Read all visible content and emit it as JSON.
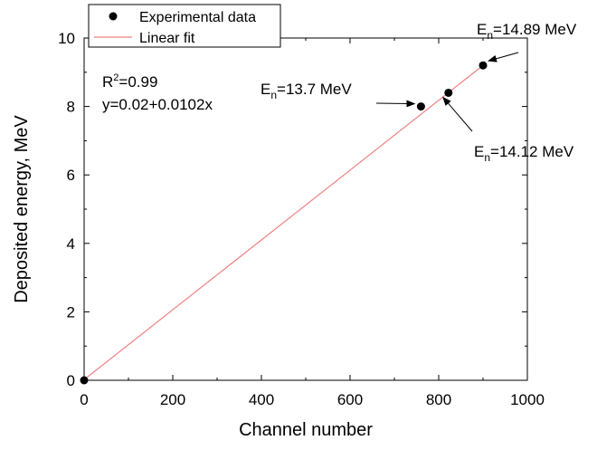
{
  "chart_data": {
    "type": "scatter",
    "title": "",
    "xlabel": "Channel number",
    "ylabel": "Deposited energy, MeV",
    "xlim": [
      0,
      1000
    ],
    "ylim": [
      0,
      10
    ],
    "x_ticks": [
      0,
      200,
      400,
      600,
      800,
      1000
    ],
    "y_ticks": [
      0,
      2,
      4,
      6,
      8,
      10
    ],
    "grid": false,
    "legend_position": "top-left",
    "series": [
      {
        "name": "Experimental data",
        "type": "scatter",
        "color": "#000000",
        "x": [
          0,
          760,
          822,
          900
        ],
        "y": [
          0.0,
          8.0,
          8.4,
          9.2
        ]
      },
      {
        "name": "Linear fit",
        "type": "line",
        "color": "#f08080",
        "x": [
          0,
          900
        ],
        "y": [
          0.02,
          9.2
        ]
      }
    ],
    "fit_stats": {
      "r_squared": {
        "base": "R",
        "sup": "2",
        "rest": "=0.99"
      },
      "equation": "y=0.02+0.0102x"
    },
    "annotations": [
      {
        "base": "E",
        "sub": "n",
        "rest": "=13.7 MeV",
        "point_index": 1
      },
      {
        "base": "E",
        "sub": "n",
        "rest": "=14.12 MeV",
        "point_index": 2
      },
      {
        "base": "E",
        "sub": "n",
        "rest": "=14.89 MeV",
        "point_index": 3
      }
    ]
  }
}
